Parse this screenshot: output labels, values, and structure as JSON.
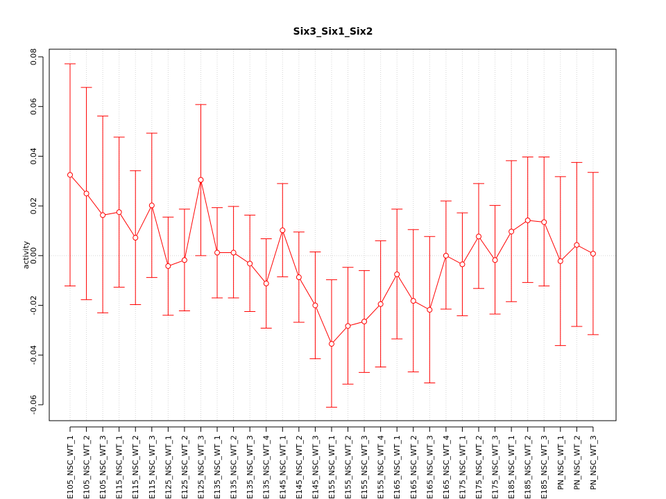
{
  "chart_data": {
    "type": "line",
    "title": "Six3_Six1_Six2",
    "xlabel": "",
    "ylabel": "activity",
    "ylim": [
      -0.066,
      0.082
    ],
    "yticks": [
      -0.06,
      -0.04,
      -0.02,
      0.0,
      0.02,
      0.04,
      0.06,
      0.08
    ],
    "ytick_labels": [
      "-0.06",
      "-0.04",
      "-0.02",
      "0.00",
      "0.02",
      "0.04",
      "0.06",
      "0.08"
    ],
    "grid": true,
    "color": "#ff0000",
    "categories": [
      "E105_NSC_WT_1",
      "E105_NSC_WT_2",
      "E105_NSC_WT_3",
      "E115_NSC_WT_1",
      "E115_NSC_WT_2",
      "E115_NSC_WT_3",
      "E125_NSC_WT_1",
      "E125_NSC_WT_2",
      "E125_NSC_WT_3",
      "E135_NSC_WT_1",
      "E135_NSC_WT_2",
      "E135_NSC_WT_3",
      "E135_NSC_WT_4",
      "E145_NSC_WT_1",
      "E145_NSC_WT_2",
      "E145_NSC_WT_3",
      "E155_NSC_WT_1",
      "E155_NSC_WT_2",
      "E155_NSC_WT_3",
      "E155_NSC_WT_4",
      "E165_NSC_WT_1",
      "E165_NSC_WT_2",
      "E165_NSC_WT_3",
      "E165_NSC_WT_4",
      "E175_NSC_WT_1",
      "E175_NSC_WT_2",
      "E175_NSC_WT_3",
      "E185_NSC_WT_1",
      "E185_NSC_WT_2",
      "E185_NSC_WT_3",
      "PN_NSC_WT_1",
      "PN_NSC_WT_2",
      "PN_NSC_WT_3"
    ],
    "series": [
      {
        "values": [
          0.0325,
          0.025,
          0.0163,
          0.0175,
          0.0072,
          0.0202,
          -0.0042,
          -0.0018,
          0.0305,
          0.0012,
          0.0012,
          -0.0032,
          -0.0112,
          0.0102,
          -0.0087,
          -0.02,
          -0.0355,
          -0.0283,
          -0.0265,
          -0.0195,
          -0.0075,
          -0.0182,
          -0.0218,
          0.0,
          -0.0035,
          0.0077,
          -0.0018,
          0.0097,
          0.0142,
          0.0135,
          -0.0022,
          0.0043,
          0.0008
        ],
        "upper": [
          0.0772,
          0.0677,
          0.0562,
          0.0477,
          0.0342,
          0.0493,
          0.0155,
          0.0187,
          0.0608,
          0.0193,
          0.0198,
          0.0163,
          0.0068,
          0.029,
          0.0095,
          0.0015,
          -0.0097,
          -0.0047,
          -0.006,
          0.006,
          0.0187,
          0.0105,
          0.0077,
          0.022,
          0.0172,
          0.029,
          0.0202,
          0.0382,
          0.0397,
          0.0397,
          0.0318,
          0.0375,
          0.0335
        ],
        "lower": [
          -0.0122,
          -0.0177,
          -0.023,
          -0.0127,
          -0.0197,
          -0.0088,
          -0.024,
          -0.0222,
          0.0,
          -0.017,
          -0.017,
          -0.0225,
          -0.0292,
          -0.0085,
          -0.0268,
          -0.0415,
          -0.061,
          -0.0517,
          -0.047,
          -0.0448,
          -0.0335,
          -0.0468,
          -0.0512,
          -0.0215,
          -0.0242,
          -0.0132,
          -0.0235,
          -0.0185,
          -0.0108,
          -0.0122,
          -0.0362,
          -0.0285,
          -0.0318
        ]
      }
    ]
  }
}
